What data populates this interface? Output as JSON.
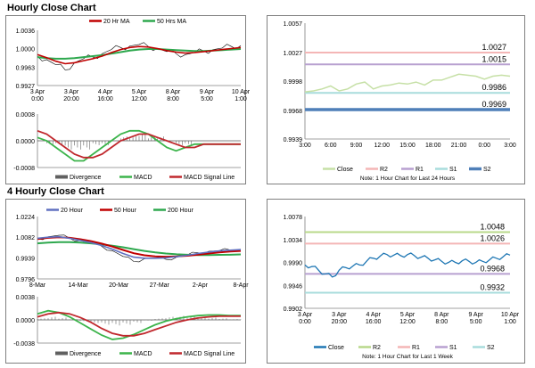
{
  "titles": {
    "hourly": "Hourly Close Chart",
    "four_hourly": "4 Hourly Close Chart"
  },
  "colors": {
    "ma_short": "#c00000",
    "ma_long": "#2ea84e",
    "price": "#6070c0",
    "macd": "#3cb44b",
    "signal": "#c0282d",
    "divergence": "#606060",
    "close_light": "#c6e0a6",
    "close_dark": "#1f77b4",
    "r2": "#f4b6b6",
    "r1": "#b8a0d0",
    "s1": "#a8dcdc",
    "s2": "#4f7fb8",
    "r2_bottom": "#b8d88a",
    "r1_bottom": "#f4b6b6",
    "s1_bottom": "#b8a0d0",
    "s2_bottom": "#a8dcdc"
  },
  "chart_data": [
    {
      "type": "line",
      "legend": [
        "20 Hr MA",
        "50 Hrs MA"
      ],
      "legend_position": "top",
      "x_ticks": [
        "3 Apr\n0:00",
        "3 Apr\n20:00",
        "4 Apr\n16:00",
        "5 Apr\n12:00",
        "8 Apr\n8:00",
        "9 Apr\n5:00",
        "10 Apr\n1:00"
      ],
      "y_ticks": [
        1.0036,
        1.0,
        0.9963,
        0.9927
      ],
      "ylim": [
        0.9927,
        1.0036
      ],
      "series": [
        {
          "name": "",
          "values": [
            0.9985,
            0.9978,
            0.9968,
            0.9958,
            0.9972,
            0.998,
            0.9983,
            0.999,
            0.9998,
            1.0002,
            1.0005,
            1.0008,
            1.0004,
            1.0,
            0.9994,
            0.999,
            0.9988,
            0.9992,
            0.9995,
            0.9998,
            1.0001,
            1.0004,
            1.0006
          ]
        },
        {
          "name": "20 Hr MA",
          "values": [
            0.9988,
            0.9982,
            0.9975,
            0.997,
            0.9972,
            0.9976,
            0.998,
            0.9985,
            0.9992,
            0.9998,
            1.0002,
            1.0004,
            1.0003,
            1.0,
            0.9996,
            0.9993,
            0.9991,
            0.9992,
            0.9994,
            0.9996,
            0.9998,
            1.0,
            1.0002
          ]
        },
        {
          "name": "50 Hrs MA",
          "values": [
            0.9983,
            0.9981,
            0.998,
            0.998,
            0.9981,
            0.9983,
            0.9985,
            0.9987,
            0.999,
            0.9993,
            0.9996,
            0.9998,
            0.9999,
            0.9999,
            0.9998,
            0.9997,
            0.9996,
            0.9995,
            0.9995,
            0.9996,
            0.9997,
            0.9998,
            0.9999
          ]
        }
      ]
    },
    {
      "type": "line",
      "legend": [
        "Divergence",
        "MACD",
        "MACD Signal Line"
      ],
      "legend_position": "bottom",
      "y_ticks": [
        0.0008,
        0.0,
        -0.0008
      ],
      "ylim": [
        -0.0008,
        0.0008
      ],
      "series": [
        {
          "name": "Divergence",
          "values": [
            0.0,
            -0.0001,
            -0.0001,
            -0.0002,
            -0.0002,
            -0.0002,
            -0.0001,
            -0.0001,
            0.0,
            0.0001,
            0.0001,
            0.0002,
            0.0001,
            0.0001,
            0.0,
            -0.0001,
            -0.0001,
            0.0,
            0.0,
            0.0,
            0.0,
            0.0,
            0.0
          ]
        },
        {
          "name": "MACD",
          "values": [
            0.0001,
            0.0,
            -0.0002,
            -0.0004,
            -0.0006,
            -0.0006,
            -0.0004,
            -0.0002,
            0.0,
            0.0002,
            0.0003,
            0.0003,
            0.0002,
            0.0,
            -0.0002,
            -0.0003,
            -0.0002,
            -0.0001,
            -0.0001,
            -0.0001,
            -0.0001,
            -0.0001,
            -0.0001
          ]
        },
        {
          "name": "MACD Signal Line",
          "values": [
            0.0003,
            0.0002,
            0.0,
            -0.0002,
            -0.0004,
            -0.0005,
            -0.0005,
            -0.0004,
            -0.0002,
            0.0,
            0.0001,
            0.0002,
            0.0002,
            0.0001,
            0.0,
            -0.0001,
            -0.0002,
            -0.0002,
            -0.0001,
            -0.0001,
            -0.0001,
            -0.0001,
            -0.0001
          ]
        }
      ]
    },
    {
      "type": "line",
      "legend": [
        "Close",
        "R2",
        "R1",
        "S1",
        "S2"
      ],
      "legend_position": "bottom",
      "note": "Note: 1 Hour Chart for Last 24 Hours",
      "x_ticks": [
        "3:00",
        "6:00",
        "9:00",
        "12:00",
        "15:00",
        "18:00",
        "21:00",
        "0:00",
        "3:00"
      ],
      "y_ticks": [
        1.0057,
        1.0027,
        0.9998,
        0.9968,
        0.9939
      ],
      "ylim": [
        0.9939,
        1.0057
      ],
      "levels": [
        {
          "name": "R2",
          "value": 1.0027,
          "label": "1.0027"
        },
        {
          "name": "R1",
          "value": 1.0015,
          "label": "1.0015"
        },
        {
          "name": "S1",
          "value": 0.9986,
          "label": "0.9986"
        },
        {
          "name": "S2",
          "value": 0.9969,
          "label": "0.9969"
        }
      ],
      "series": [
        {
          "name": "Close",
          "values": [
            0.9987,
            0.9988,
            0.999,
            0.9993,
            0.9988,
            0.999,
            0.9995,
            0.9997,
            0.999,
            0.9993,
            0.9994,
            0.9996,
            0.9995,
            0.9997,
            0.9994,
            0.9999,
            0.9999,
            1.0002,
            1.0005,
            1.0004,
            1.0003,
            1.0,
            1.0003,
            1.0004,
            1.0003
          ]
        }
      ]
    },
    {
      "type": "line",
      "legend": [
        "20 Hour",
        "50 Hour",
        "200 Hour"
      ],
      "legend_position": "top",
      "x_ticks": [
        "8-Mar",
        "14-Mar",
        "20-Mar",
        "27-Mar",
        "2-Apr",
        "8-Apr"
      ],
      "y_ticks": [
        1.0224,
        1.0082,
        0.9939,
        0.9796
      ],
      "ylim": [
        0.9796,
        1.0224
      ],
      "series": [
        {
          "name": "",
          "values": [
            1.007,
            1.0085,
            1.0095,
            1.0075,
            1.006,
            1.004,
            1.002,
            0.999,
            0.995,
            0.9915,
            0.9935,
            0.994,
            0.993,
            0.9945,
            0.996,
            0.9975,
            0.9985,
            0.999,
            0.9995,
            1.0
          ]
        },
        {
          "name": "20 Hour",
          "values": [
            1.0075,
            1.0082,
            1.0085,
            1.0075,
            1.006,
            1.0045,
            1.0025,
            1.0,
            0.997,
            0.9945,
            0.9938,
            0.9938,
            0.994,
            0.9948,
            0.9958,
            0.997,
            0.998,
            0.9988,
            0.9993,
            0.9997
          ]
        },
        {
          "name": "50 Hour",
          "values": [
            1.007,
            1.0078,
            1.0082,
            1.0078,
            1.0068,
            1.0055,
            1.0038,
            1.0018,
            0.9995,
            0.9972,
            0.9958,
            0.995,
            0.9948,
            0.995,
            0.9955,
            0.9962,
            0.997,
            0.9978,
            0.9984,
            0.9988
          ]
        },
        {
          "name": "200 Hour",
          "values": [
            1.004,
            1.0045,
            1.0048,
            1.0048,
            1.0045,
            1.004,
            1.0033,
            1.0024,
            1.0013,
            1.0,
            0.9988,
            0.9978,
            0.997,
            0.9965,
            0.9962,
            0.996,
            0.996,
            0.9961,
            0.9962,
            0.9964
          ]
        }
      ]
    },
    {
      "type": "line",
      "legend": [
        "Divergence",
        "MACD",
        "MACD Signal Line"
      ],
      "legend_position": "bottom",
      "y_ticks": [
        0.0038,
        0.0,
        -0.0038
      ],
      "ylim": [
        -0.0038,
        0.0038
      ],
      "series": [
        {
          "name": "Divergence",
          "values": [
            0.0002,
            0.0004,
            0.0003,
            0.0001,
            -0.0002,
            -0.0004,
            -0.0006,
            -0.0007,
            -0.0006,
            -0.0004,
            -0.0001,
            0.0002,
            0.0004,
            0.0005,
            0.0005,
            0.0004,
            0.0003,
            0.0002,
            0.0001,
            0.0001
          ]
        },
        {
          "name": "MACD",
          "values": [
            0.001,
            0.0015,
            0.0012,
            0.0005,
            -0.0005,
            -0.0015,
            -0.0025,
            -0.0032,
            -0.003,
            -0.0024,
            -0.0016,
            -0.0008,
            -0.0002,
            0.0002,
            0.0005,
            0.0007,
            0.0008,
            0.0008,
            0.0007,
            0.0007
          ]
        },
        {
          "name": "MACD Signal Line",
          "values": [
            0.0005,
            0.001,
            0.0012,
            0.001,
            0.0004,
            -0.0004,
            -0.0014,
            -0.0022,
            -0.0026,
            -0.0026,
            -0.0022,
            -0.0016,
            -0.001,
            -0.0004,
            0.0,
            0.0003,
            0.0005,
            0.0006,
            0.0006,
            0.0006
          ]
        }
      ]
    },
    {
      "type": "line",
      "legend": [
        "Close",
        "R2",
        "R1",
        "S1",
        "S2"
      ],
      "legend_position": "bottom",
      "note": "Note: 1 Hour Chart for Last 1 Week",
      "x_ticks": [
        "3 Apr\n0:00",
        "3 Apr\n20:00",
        "4 Apr\n16:00",
        "5 Apr\n12:00",
        "8 Apr\n8:00",
        "9 Apr\n5:00",
        "10 Apr\n1:00"
      ],
      "y_ticks": [
        1.0078,
        1.0034,
        0.999,
        0.9946,
        0.9902
      ],
      "ylim": [
        0.9902,
        1.0078
      ],
      "levels": [
        {
          "name": "R2",
          "value": 1.0048,
          "label": "1.0048"
        },
        {
          "name": "R1",
          "value": 1.0026,
          "label": "1.0026"
        },
        {
          "name": "S1",
          "value": 0.9968,
          "label": "0.9968"
        },
        {
          "name": "S2",
          "value": 0.9932,
          "label": "0.9932"
        }
      ],
      "series": [
        {
          "name": "Close",
          "values": [
            0.9985,
            0.9982,
            0.9975,
            0.9968,
            0.9962,
            0.9975,
            0.998,
            0.9983,
            0.9985,
            0.9992,
            0.9998,
            1.0002,
            1.0005,
            1.0004,
            1.0003,
            1.0005,
            1.0003,
            1.0,
            0.9998,
            0.9995,
            0.9992,
            0.999,
            0.999,
            0.9993,
            0.9992,
            0.999,
            0.9992,
            0.9995,
            0.9998,
            1.0001,
            1.0004
          ]
        }
      ]
    }
  ]
}
